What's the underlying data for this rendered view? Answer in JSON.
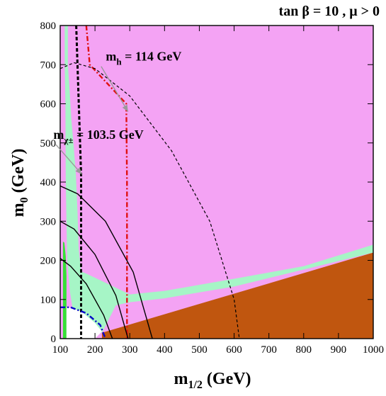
{
  "chart_data": {
    "type": "area",
    "title": "tan β = 10 ,  μ > 0",
    "xlabel": "m",
    "xlabel_sub": "1/2",
    "xlabel_unit": " (GeV)",
    "ylabel": "m",
    "ylabel_sub": "0",
    "ylabel_unit": " (GeV)",
    "xlim": [
      100,
      1000
    ],
    "ylim": [
      0,
      800
    ],
    "x_ticks": [
      100,
      200,
      300,
      400,
      500,
      600,
      700,
      800,
      900,
      1000
    ],
    "y_ticks": [
      0,
      100,
      200,
      300,
      400,
      500,
      600,
      700,
      800
    ],
    "colors": {
      "background": "#f4a3f4",
      "charged_lsp": "#c0560f",
      "relic_density": "#a6f5c6",
      "bsg_excluded": "#36e036",
      "unshaded": "#ffffff",
      "higgs_line": "#e01010",
      "chargino_line": "#000000",
      "blue_line": "#0000c8"
    },
    "regions": [
      {
        "name": "charged-lsp-region",
        "color_key": "charged_lsp",
        "points": [
          [
            220,
            0
          ],
          [
            1000,
            0
          ],
          [
            1000,
            220
          ],
          [
            220,
            15
          ]
        ]
      },
      {
        "name": "relic-density-band",
        "color_key": "relic_density",
        "points": [
          [
            113,
            800
          ],
          [
            122,
            800
          ],
          [
            122,
            700
          ],
          [
            128,
            620
          ],
          [
            132,
            560
          ],
          [
            138,
            500
          ],
          [
            145,
            420
          ],
          [
            150,
            320
          ],
          [
            153,
            230
          ],
          [
            160,
            172
          ],
          [
            178,
            165
          ],
          [
            260,
            130
          ],
          [
            300,
            113
          ],
          [
            400,
            122
          ],
          [
            600,
            153
          ],
          [
            800,
            185
          ],
          [
            1000,
            240
          ],
          [
            1000,
            220
          ],
          [
            600,
            133
          ],
          [
            400,
            103
          ],
          [
            300,
            93
          ],
          [
            260,
            85
          ],
          [
            220,
            15
          ],
          [
            150,
            35
          ],
          [
            135,
            80
          ],
          [
            128,
            120
          ],
          [
            120,
            200
          ],
          [
            116,
            400
          ],
          [
            115,
            600
          ],
          [
            113,
            700
          ]
        ]
      },
      {
        "name": "bsg-excluded-region",
        "color_key": "bsg_excluded",
        "points": [
          [
            108,
            0
          ],
          [
            118,
            0
          ],
          [
            118,
            160
          ],
          [
            116,
            210
          ],
          [
            112,
            245
          ],
          [
            108,
            248
          ]
        ]
      },
      {
        "name": "unshaded-region",
        "color_key": "unshaded",
        "points": [
          [
            118,
            0
          ],
          [
            200,
            0
          ],
          [
            220,
            18
          ],
          [
            200,
            40
          ],
          [
            160,
            70
          ],
          [
            130,
            78
          ],
          [
            118,
            80
          ]
        ]
      }
    ],
    "series": [
      {
        "name": "m_h = 114 GeV",
        "style": "dash-dot",
        "color_key": "higgs_line",
        "x": [
          175,
          180,
          185,
          290,
          292,
          292,
          292
        ],
        "y": [
          800,
          750,
          700,
          600,
          400,
          200,
          0
        ]
      },
      {
        "name": "m_χ± = 103.5 GeV",
        "style": "dashed-bold",
        "color_key": "chargino_line",
        "x": [
          146,
          160,
          160,
          160
        ],
        "y": [
          800,
          420,
          200,
          0
        ]
      },
      {
        "name": "contour-a",
        "style": "solid",
        "color_key": "chargino_line",
        "x": [
          100,
          130,
          175,
          225,
          250
        ],
        "y": [
          205,
          185,
          140,
          60,
          0
        ]
      },
      {
        "name": "contour-b",
        "style": "solid",
        "color_key": "chargino_line",
        "x": [
          100,
          140,
          200,
          260,
          295
        ],
        "y": [
          300,
          280,
          215,
          110,
          0
        ]
      },
      {
        "name": "contour-c",
        "style": "solid",
        "color_key": "chargino_line",
        "x": [
          100,
          150,
          230,
          310,
          365
        ],
        "y": [
          390,
          370,
          300,
          170,
          0
        ]
      },
      {
        "name": "contour-outer-dashed",
        "style": "dashed",
        "color_key": "chargino_line",
        "x": [
          100,
          140,
          200,
          300,
          420,
          530,
          600,
          615
        ],
        "y": [
          690,
          705,
          690,
          620,
          480,
          300,
          100,
          0
        ]
      },
      {
        "name": "contour-blue",
        "style": "dash-dot",
        "color_key": "blue_line",
        "x": [
          100,
          130,
          175,
          215,
          230
        ],
        "y": [
          80,
          80,
          65,
          35,
          0
        ]
      }
    ],
    "annotations": [
      {
        "name": "higgs-label",
        "text": "m",
        "sub": "h",
        "rest": "  = 114 GeV",
        "x": 340,
        "y": 710,
        "arrow_to": [
          295,
          580
        ]
      },
      {
        "name": "chargino-label",
        "text": "m",
        "sub": "χ±",
        "rest": " = 103.5 GeV",
        "x": 210,
        "y": 510,
        "arrow_to": [
          162,
          420
        ]
      }
    ],
    "grid": false,
    "legend": "none"
  }
}
